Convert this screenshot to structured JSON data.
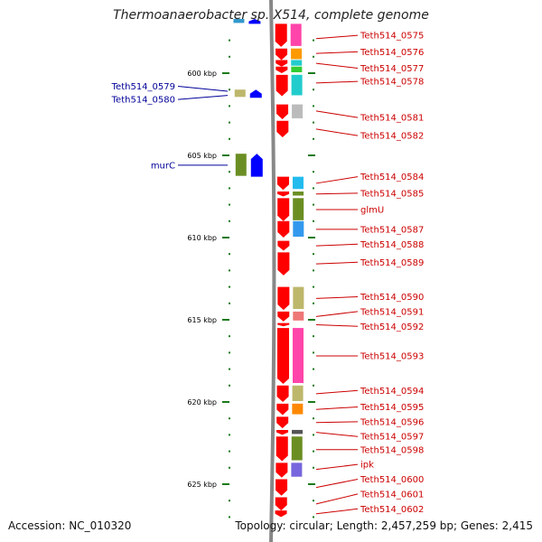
{
  "title": "Thermoanaerobacter sp. X514, complete genome",
  "accession": "Accession: NC_010320",
  "topology": "Topology: circular; Length: 2,457,259 bp; Genes: 2,415",
  "colors": {
    "forward_gene": "#ff0000",
    "reverse_gene": "#0000ff",
    "right_label": "#cc0000",
    "left_label": "#000099",
    "tick": "#1a7a1a",
    "axis": "#888888"
  },
  "axis": {
    "start_kbp": 597,
    "end_kbp": 627,
    "unit": "kbp"
  },
  "kbp_ticks": [
    {
      "kbp": 600,
      "label": "600 kbp"
    },
    {
      "kbp": 605,
      "label": "605 kbp"
    },
    {
      "kbp": 610,
      "label": "610 kbp"
    },
    {
      "kbp": 615,
      "label": "615 kbp"
    },
    {
      "kbp": 620,
      "label": "620 kbp"
    },
    {
      "kbp": 625,
      "label": "625 kbp"
    }
  ],
  "forward_genes": [
    {
      "start": 597.0,
      "end": 598.4,
      "cog": "#ff44aa"
    },
    {
      "start": 598.5,
      "end": 599.2,
      "cog": "#ff9900"
    },
    {
      "start": 599.2,
      "end": 599.6,
      "cog": "#22cccc"
    },
    {
      "start": 599.6,
      "end": 600.0,
      "cog": "#33cc33"
    },
    {
      "start": 600.1,
      "end": 601.4,
      "cog": "#22cccc"
    },
    {
      "start": 601.9,
      "end": 602.8,
      "cog": "#bbbbbb"
    },
    {
      "start": 602.9,
      "end": 603.9,
      "cog": null
    },
    {
      "start": 606.3,
      "end": 607.1,
      "cog": "#22bbee"
    },
    {
      "start": 607.2,
      "end": 607.5,
      "cog": "#6b8e23"
    },
    {
      "start": 607.6,
      "end": 609.0,
      "cog": "#6b8e23"
    },
    {
      "start": 609.0,
      "end": 610.0,
      "cog": "#3399ee"
    },
    {
      "start": 610.2,
      "end": 610.8,
      "cog": null
    },
    {
      "start": 610.9,
      "end": 612.3,
      "cog": null
    },
    {
      "start": 613.0,
      "end": 614.4,
      "cog": "#bdb76b"
    },
    {
      "start": 614.5,
      "end": 615.1,
      "cog": "#ee7777"
    },
    {
      "start": 615.2,
      "end": 615.4,
      "cog": null
    },
    {
      "start": 615.5,
      "end": 618.9,
      "cog": "#ff44aa"
    },
    {
      "start": 619.0,
      "end": 620.0,
      "cog": "#bdb76b"
    },
    {
      "start": 620.1,
      "end": 620.8,
      "cog": "#ff8800"
    },
    {
      "start": 620.9,
      "end": 621.6,
      "cog": null
    },
    {
      "start": 621.7,
      "end": 622.0,
      "cog": "#555555"
    },
    {
      "start": 622.1,
      "end": 623.6,
      "cog": "#6b8e23"
    },
    {
      "start": 623.7,
      "end": 624.6,
      "cog": "#7766dd"
    },
    {
      "start": 624.7,
      "end": 625.7,
      "cog": null
    },
    {
      "start": 625.8,
      "end": 626.6,
      "cog": null
    },
    {
      "start": 626.6,
      "end": 627.0,
      "cog": null
    }
  ],
  "reverse_genes": [
    {
      "start": 596.7,
      "end": 597.0,
      "cog": "#3399cc"
    },
    {
      "start": 601.0,
      "end": 601.5,
      "cog": "#bdb76b"
    },
    {
      "start": 604.9,
      "end": 606.3,
      "cog": "#6b8e23"
    }
  ],
  "right_labels": [
    {
      "text": "Teth514_0575",
      "gene_kbp": 597.9,
      "label_kbp": 597.7
    },
    {
      "text": "Teth514_0576",
      "gene_kbp": 598.8,
      "label_kbp": 598.7
    },
    {
      "text": "Teth514_0577",
      "gene_kbp": 599.4,
      "label_kbp": 599.7
    },
    {
      "text": "Teth514_0578",
      "gene_kbp": 600.6,
      "label_kbp": 600.5
    },
    {
      "text": "Teth514_0581",
      "gene_kbp": 602.3,
      "label_kbp": 602.7
    },
    {
      "text": "Teth514_0582",
      "gene_kbp": 603.4,
      "label_kbp": 603.8
    },
    {
      "text": "Teth514_0584",
      "gene_kbp": 606.7,
      "label_kbp": 606.3
    },
    {
      "text": "Teth514_0585",
      "gene_kbp": 607.35,
      "label_kbp": 607.3
    },
    {
      "text": "glmU",
      "gene_kbp": 608.3,
      "label_kbp": 608.3
    },
    {
      "text": "Teth514_0587",
      "gene_kbp": 609.5,
      "label_kbp": 609.5
    },
    {
      "text": "Teth514_0588",
      "gene_kbp": 610.5,
      "label_kbp": 610.4
    },
    {
      "text": "Teth514_0589",
      "gene_kbp": 611.6,
      "label_kbp": 611.5
    },
    {
      "text": "Teth514_0590",
      "gene_kbp": 613.7,
      "label_kbp": 613.6
    },
    {
      "text": "Teth514_0591",
      "gene_kbp": 614.8,
      "label_kbp": 614.5
    },
    {
      "text": "Teth514_0592",
      "gene_kbp": 615.3,
      "label_kbp": 615.4
    },
    {
      "text": "Teth514_0593",
      "gene_kbp": 617.2,
      "label_kbp": 617.2
    },
    {
      "text": "Teth514_0594",
      "gene_kbp": 619.5,
      "label_kbp": 619.3
    },
    {
      "text": "Teth514_0595",
      "gene_kbp": 620.45,
      "label_kbp": 620.3
    },
    {
      "text": "Teth514_0596",
      "gene_kbp": 621.25,
      "label_kbp": 621.2
    },
    {
      "text": "Teth514_0597",
      "gene_kbp": 621.85,
      "label_kbp": 622.1
    },
    {
      "text": "Teth514_0598",
      "gene_kbp": 622.9,
      "label_kbp": 622.9
    },
    {
      "text": "ipk",
      "gene_kbp": 624.1,
      "label_kbp": 623.8
    },
    {
      "text": "Teth514_0600",
      "gene_kbp": 625.2,
      "label_kbp": 624.7
    },
    {
      "text": "Teth514_0601",
      "gene_kbp": 626.2,
      "label_kbp": 625.6
    },
    {
      "text": "Teth514_0602",
      "gene_kbp": 626.8,
      "label_kbp": 626.5
    }
  ],
  "left_labels": [
    {
      "text": "Teth514_0579",
      "gene_kbp": 601.1,
      "label_kbp": 600.8
    },
    {
      "text": "Teth514_0580",
      "gene_kbp": 601.35,
      "label_kbp": 601.6
    },
    {
      "text": "murC",
      "gene_kbp": 605.6,
      "label_kbp": 605.6
    }
  ]
}
